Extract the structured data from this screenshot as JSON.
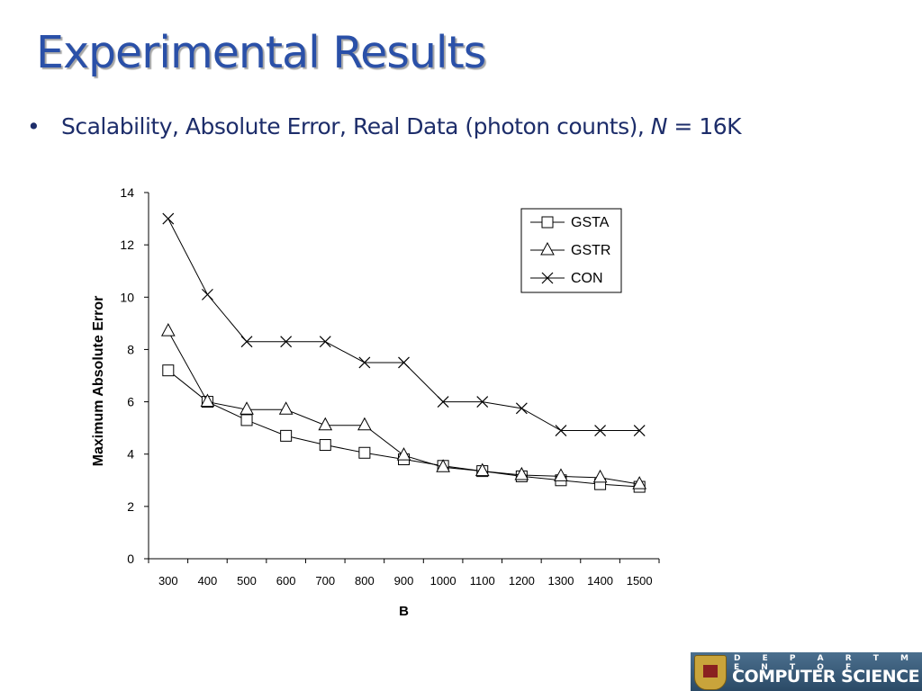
{
  "slide": {
    "title": "Experimental Results",
    "bullet": {
      "symbol": "•",
      "text_before": "Scalability, Absolute Error, Real Data (photon counts), ",
      "italic_n": "N",
      "text_after": " = 16K"
    }
  },
  "logo": {
    "line1": "D E P A R T M E N T   O F",
    "line2": "COMPUTER SCIENCE",
    "brand_color": "#3b5d7c"
  },
  "chart_data": {
    "type": "line",
    "title": "",
    "xlabel": "B",
    "ylabel": "Maximum Absolute Error",
    "categories": [
      "300",
      "400",
      "500",
      "600",
      "700",
      "800",
      "900",
      "1000",
      "1100",
      "1200",
      "1300",
      "1400",
      "1500"
    ],
    "ylim": [
      0,
      14
    ],
    "yticks": [
      0,
      2,
      4,
      6,
      8,
      10,
      12,
      14
    ],
    "grid": false,
    "legend_position": "top-right",
    "series": [
      {
        "name": "GSTA",
        "marker": "square",
        "values": [
          7.2,
          6.0,
          5.3,
          4.7,
          4.35,
          4.05,
          3.8,
          3.55,
          3.35,
          3.15,
          3.0,
          2.85,
          2.75
        ]
      },
      {
        "name": "GSTR",
        "marker": "triangle",
        "values": [
          8.7,
          6.0,
          5.7,
          5.7,
          5.1,
          5.1,
          3.95,
          3.5,
          3.35,
          3.2,
          3.15,
          3.1,
          2.85
        ]
      },
      {
        "name": "CON",
        "marker": "cross",
        "values": [
          13.0,
          10.1,
          8.3,
          8.3,
          8.3,
          7.5,
          7.5,
          6.0,
          6.0,
          5.75,
          4.9,
          4.9,
          4.9
        ]
      }
    ]
  }
}
